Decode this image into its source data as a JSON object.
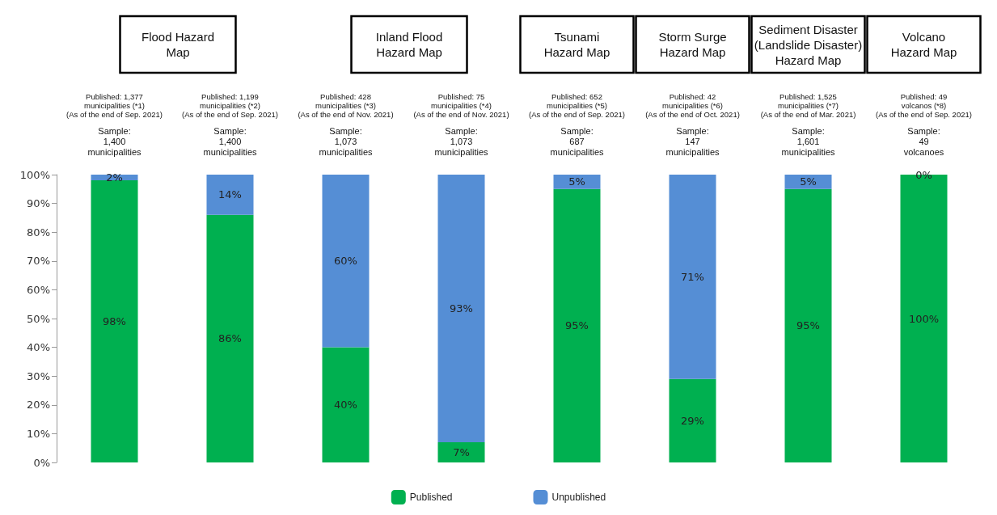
{
  "chart_data": {
    "type": "bar",
    "stacked": true,
    "annotations": [
      "Flood Hazard\nMap",
      "Inland Flood\nHazard Map",
      "Tsunami\nHazard Map",
      "Storm Surge\nHazard Map",
      "Sediment Disaster\n(Landslide Disaster)\nHazard Map",
      "Volcano\nHazard Map"
    ],
    "categories": [
      "Published: 1,377\nmunicipalities (*1)\n(As of the end of Sep. 2021)\n\nSample:\n1,400\nmunicipalities",
      "Published: 1,199\nmunicipalities (*2)\n(As of the end of Sep. 2021)\n\nSample:\n1,400\nmunicipalities",
      "Published: 428\nmunicipalities (*3)\n(As of the end of Nov. 2021)\n\nSample:\n1,073\nmunicipalities",
      "Published: 75\nmunicipalities (*4)\n(As of the end of Nov. 2021)\n\nSample:\n1,073\nmunicipalities",
      "Published: 652\nmunicipalities (*5)\n(As of the end of Sep. 2021)\n\nSample:\n687\nmunicipalities",
      "Published: 42\nmunicipalities (*6)\n(As of the end of Oct. 2021)\n\nSample:\n147\nmunicipalities",
      "Published: 1,525\nmunicipalities (*7)\n(As of the end of Mar. 2021)\n\nSample:\n1,601\nmunicipalities",
      "Published: 49\nvolcanos (*8)\n(As of the end of Sep. 2021)\n\nSample:\n49\nvolcanoes"
    ],
    "series": [
      {
        "name": "Published",
        "color": "#00b050",
        "values": [
          98,
          86,
          40,
          7,
          95,
          29,
          95,
          100
        ],
        "value_labels": [
          "98%",
          "86%",
          "40%",
          "7%",
          "95%",
          "29%",
          "95%",
          "100%"
        ]
      },
      {
        "name": "Unpublished",
        "color": "#558ed5",
        "values": [
          2,
          14,
          60,
          93,
          5,
          71,
          5,
          0
        ],
        "value_labels": [
          "2%",
          "14%",
          "60%",
          "93%",
          "5%",
          "71%",
          "5%",
          "0%"
        ]
      }
    ],
    "ylim": [
      0,
      100
    ],
    "yticks": [
      {
        "value": 0,
        "label": "0%"
      },
      {
        "value": 10,
        "label": "10%"
      },
      {
        "value": 20,
        "label": "20%"
      },
      {
        "value": 30,
        "label": "30%"
      },
      {
        "value": 40,
        "label": "40%"
      },
      {
        "value": 50,
        "label": "50%"
      },
      {
        "value": 60,
        "label": "60%"
      },
      {
        "value": 70,
        "label": "70%"
      },
      {
        "value": 80,
        "label": "80%"
      },
      {
        "value": 90,
        "label": "90%"
      },
      {
        "value": 100,
        "label": "100%"
      }
    ],
    "grid": false,
    "legend": "bottom"
  }
}
